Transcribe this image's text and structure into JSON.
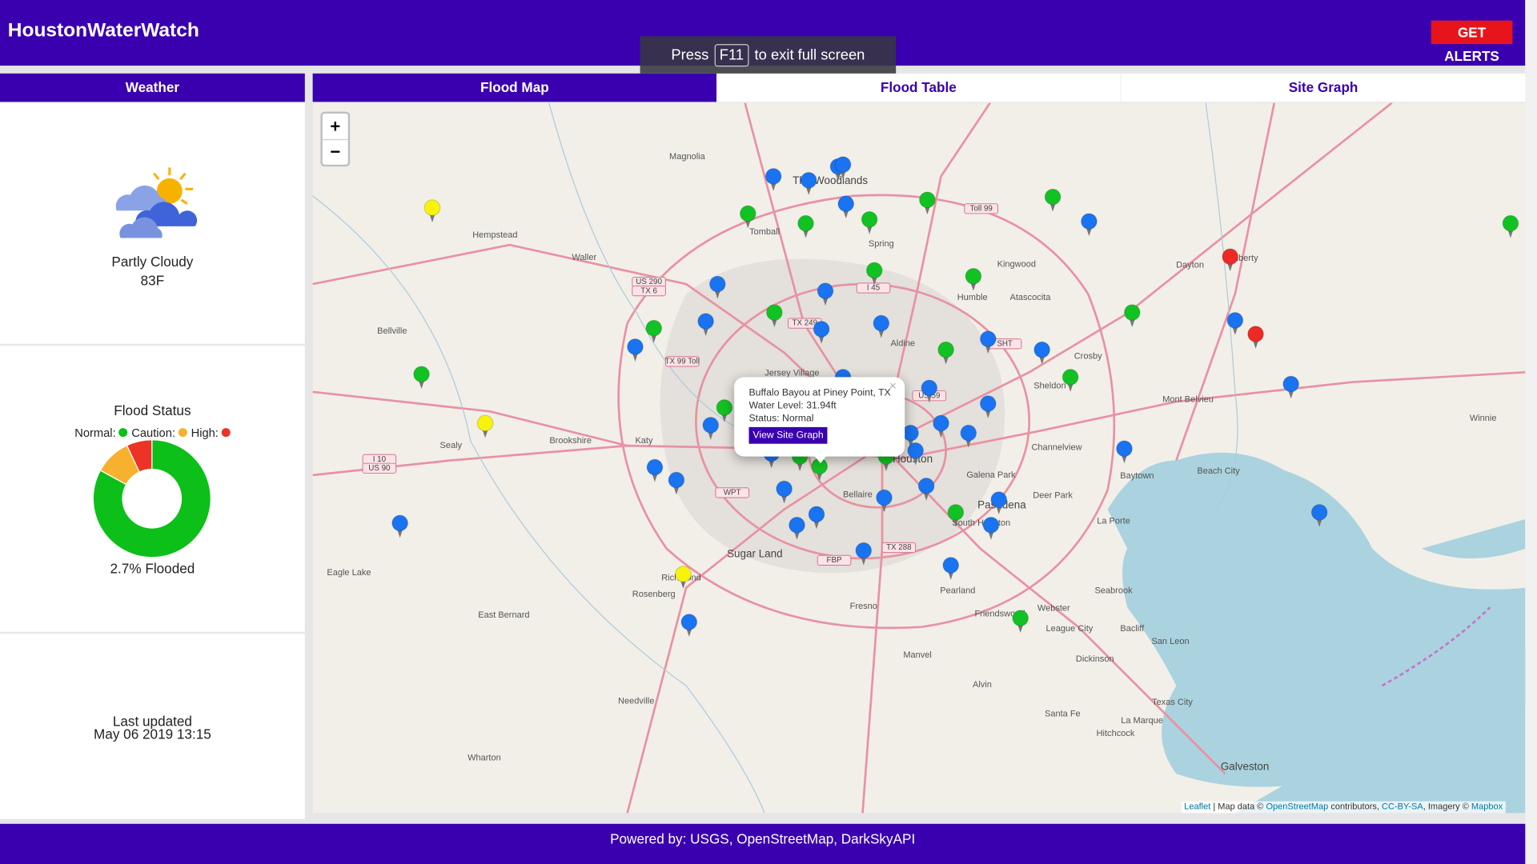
{
  "header": {
    "title": "HoustonWaterWatch",
    "alert_button": "GET ALERTS"
  },
  "fullscreen_notice": {
    "before": "Press",
    "key": "F11",
    "after": "to exit full screen"
  },
  "sidebar": {
    "tab": "Weather",
    "weather": {
      "condition": "Partly Cloudy",
      "temperature": "83F"
    },
    "flood_status": {
      "title": "Flood Status",
      "chart": {
        "type": "donut",
        "categories": [
          "Normal:",
          "Caution:",
          "High:"
        ],
        "values": [
          83,
          10,
          7
        ],
        "colors": [
          "#0cbf19",
          "#f7b12e",
          "#ec3325"
        ]
      },
      "flooded_label": "2.7% Flooded"
    },
    "last_updated": {
      "label": "Last updated",
      "timestamp": "May 06 2019 13:15"
    }
  },
  "tabs": [
    "Flood Map",
    "Flood Table",
    "Site Graph"
  ],
  "map": {
    "zoom_in": "+",
    "zoom_out": "−",
    "places": [
      "The Woodlands",
      "Magnolia",
      "Tomball",
      "Hempstead",
      "Waller",
      "Spring",
      "Kingwood",
      "Humble",
      "Atascocita",
      "Dayton",
      "Liberty",
      "Bellville",
      "Aldine",
      "Crosby",
      "Sheldon",
      "Mont Belvieu",
      "Winnie",
      "Jersey Village",
      "Brookshire",
      "Katy",
      "Sealy",
      "Channelview",
      "Baytown",
      "Beach City",
      "Houston",
      "Galena Park",
      "Pasadena",
      "Deer Park",
      "Bellaire",
      "South Houston",
      "La Porte",
      "Sugar Land",
      "Eagle Lake",
      "Richmond",
      "Rosenberg",
      "East Bernard",
      "Seabrook",
      "Pearland",
      "Fresno",
      "Friendswood",
      "Webster",
      "League City",
      "Bacliff",
      "San Leon",
      "Manvel",
      "Dickinson",
      "Alvin",
      "Needville",
      "Texas City",
      "Santa Fe",
      "Hitchcock",
      "La Marque",
      "Wharton",
      "Galveston"
    ],
    "shields": [
      "Toll 99",
      "US 290",
      "TX 6",
      "I 45",
      "TX 249",
      "TX 99 Toll",
      "SHT",
      "US 59",
      "I 10",
      "US 90",
      "WPT",
      "TX 288",
      "FBP"
    ],
    "popup": {
      "site": "Buffalo Bayou at Piney Point, TX",
      "water_level": "Water Level: 31.94ft",
      "status": "Status: Normal",
      "button": "View Site Graph",
      "close": "×"
    },
    "attribution": {
      "leaflet": "Leaflet",
      "sep": " | Map data © ",
      "osm": "OpenStreetMap",
      "contrib": " contributors, ",
      "license": "CC-BY-SA",
      "imagery": ", Imagery © ",
      "mapbox": "Mapbox"
    }
  },
  "footer": "Powered by: USGS, OpenStreetMap, DarkSkyAPI"
}
